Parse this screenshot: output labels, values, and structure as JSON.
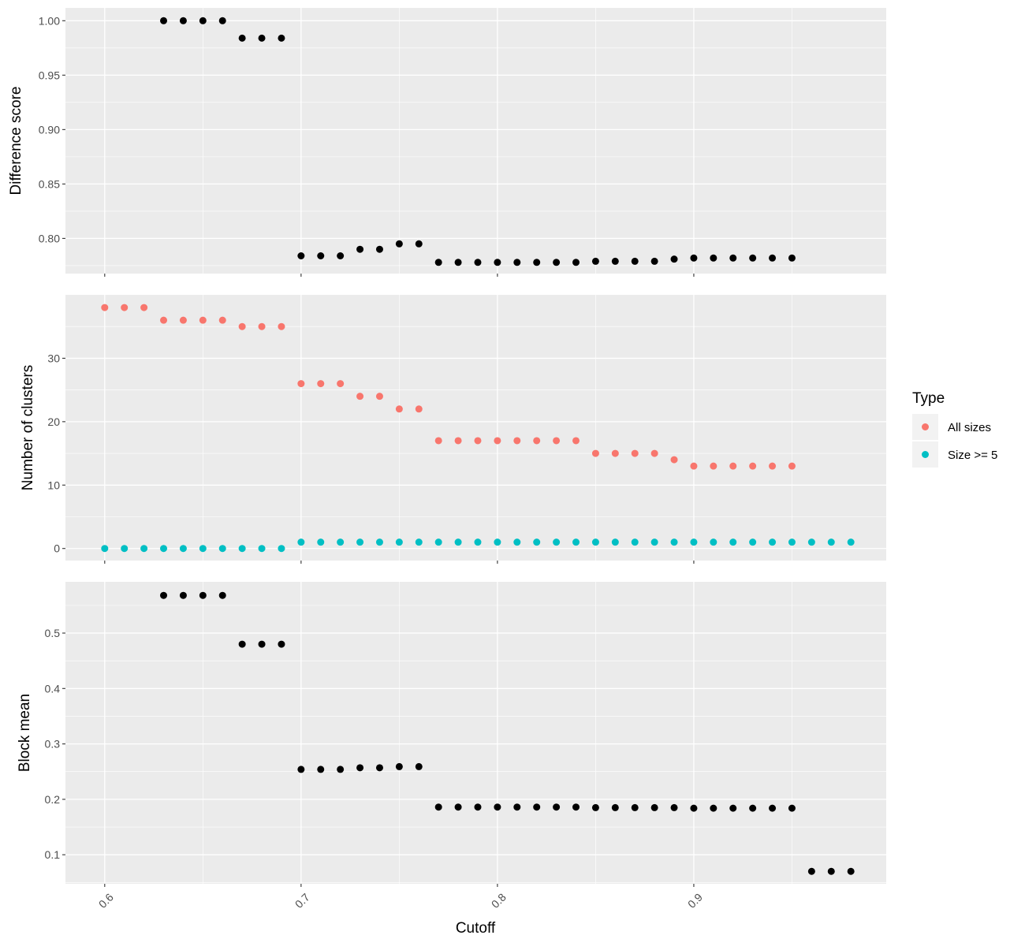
{
  "chart_data": {
    "type": "scatter",
    "xlabel": "Cutoff",
    "x_ticks": [
      "0.6",
      "0.7",
      "0.8",
      "0.9"
    ],
    "xlim": [
      0.58,
      0.998
    ],
    "colors": {
      "default": "#000000",
      "All sizes": "#F8766D",
      "Size >= 5": "#00BFC4",
      "panel_bg": "#EBEBEB",
      "grid": "#FFFFFF"
    },
    "legend": {
      "title": "Type",
      "position": "right",
      "entries": [
        {
          "label": "All sizes",
          "color": "#F8766D"
        },
        {
          "label": "Size >= 5",
          "color": "#00BFC4"
        }
      ]
    },
    "panels": [
      {
        "ylabel": "Difference score",
        "ylim": [
          0.7677,
          1.0118
        ],
        "y_ticks": [
          "0.80",
          "0.85",
          "0.90",
          "0.95",
          "1.00"
        ],
        "series": [
          {
            "x": [
              0.63,
              0.64,
              0.65,
              0.66,
              0.67,
              0.68,
              0.69,
              0.7,
              0.71,
              0.72,
              0.73,
              0.74,
              0.75,
              0.76,
              0.77,
              0.78,
              0.79,
              0.8,
              0.81,
              0.82,
              0.83,
              0.84,
              0.85,
              0.86,
              0.87,
              0.88,
              0.89,
              0.9,
              0.91,
              0.92,
              0.93,
              0.94,
              0.95
            ],
            "y": [
              1.0,
              1.0,
              1.0,
              1.0,
              0.984,
              0.984,
              0.984,
              0.784,
              0.784,
              0.784,
              0.79,
              0.79,
              0.795,
              0.795,
              0.778,
              0.778,
              0.778,
              0.778,
              0.778,
              0.778,
              0.778,
              0.778,
              0.779,
              0.779,
              0.779,
              0.779,
              0.781,
              0.782,
              0.782,
              0.782,
              0.782,
              0.782,
              0.782
            ],
            "color": "#000000"
          }
        ]
      },
      {
        "ylabel": "Number of clusters",
        "ylim": [
          -1.9,
          40.0
        ],
        "y_ticks": [
          "0",
          "10",
          "20",
          "30"
        ],
        "series": [
          {
            "name": "All sizes",
            "color": "#F8766D",
            "x": [
              0.6,
              0.61,
              0.62,
              0.63,
              0.64,
              0.65,
              0.66,
              0.67,
              0.68,
              0.69,
              0.7,
              0.71,
              0.72,
              0.73,
              0.74,
              0.75,
              0.76,
              0.77,
              0.78,
              0.79,
              0.8,
              0.81,
              0.82,
              0.83,
              0.84,
              0.85,
              0.86,
              0.87,
              0.88,
              0.89,
              0.9,
              0.91,
              0.92,
              0.93,
              0.94,
              0.95
            ],
            "y": [
              38,
              38,
              38,
              36,
              36,
              36,
              36,
              35,
              35,
              35,
              26,
              26,
              26,
              24,
              24,
              22,
              22,
              17,
              17,
              17,
              17,
              17,
              17,
              17,
              17,
              15,
              15,
              15,
              15,
              14,
              13,
              13,
              13,
              13,
              13,
              13
            ]
          },
          {
            "name": "Size >= 5",
            "color": "#00BFC4",
            "x": [
              0.6,
              0.61,
              0.62,
              0.63,
              0.64,
              0.65,
              0.66,
              0.67,
              0.68,
              0.69,
              0.7,
              0.71,
              0.72,
              0.73,
              0.74,
              0.75,
              0.76,
              0.77,
              0.78,
              0.79,
              0.8,
              0.81,
              0.82,
              0.83,
              0.84,
              0.85,
              0.86,
              0.87,
              0.88,
              0.89,
              0.9,
              0.91,
              0.92,
              0.93,
              0.94,
              0.95,
              0.96,
              0.97,
              0.98
            ],
            "y": [
              0,
              0,
              0,
              0,
              0,
              0,
              0,
              0,
              0,
              0,
              1,
              1,
              1,
              1,
              1,
              1,
              1,
              1,
              1,
              1,
              1,
              1,
              1,
              1,
              1,
              1,
              1,
              1,
              1,
              1,
              1,
              1,
              1,
              1,
              1,
              1,
              1,
              1,
              1
            ]
          }
        ]
      },
      {
        "ylabel": "Block mean",
        "ylim": [
          0.0476,
          0.5925
        ],
        "y_ticks": [
          "0.1",
          "0.2",
          "0.3",
          "0.4",
          "0.5"
        ],
        "series": [
          {
            "x": [
              0.63,
              0.64,
              0.65,
              0.66,
              0.67,
              0.68,
              0.69,
              0.7,
              0.71,
              0.72,
              0.73,
              0.74,
              0.75,
              0.76,
              0.77,
              0.78,
              0.79,
              0.8,
              0.81,
              0.82,
              0.83,
              0.84,
              0.85,
              0.86,
              0.87,
              0.88,
              0.89,
              0.9,
              0.91,
              0.92,
              0.93,
              0.94,
              0.95,
              0.96,
              0.97,
              0.98
            ],
            "y": [
              0.568,
              0.568,
              0.568,
              0.568,
              0.48,
              0.48,
              0.48,
              0.254,
              0.254,
              0.254,
              0.257,
              0.257,
              0.259,
              0.259,
              0.186,
              0.186,
              0.186,
              0.186,
              0.186,
              0.186,
              0.186,
              0.186,
              0.185,
              0.185,
              0.185,
              0.185,
              0.185,
              0.184,
              0.184,
              0.184,
              0.184,
              0.184,
              0.184,
              0.07,
              0.07,
              0.07
            ],
            "color": "#000000"
          }
        ]
      }
    ]
  }
}
